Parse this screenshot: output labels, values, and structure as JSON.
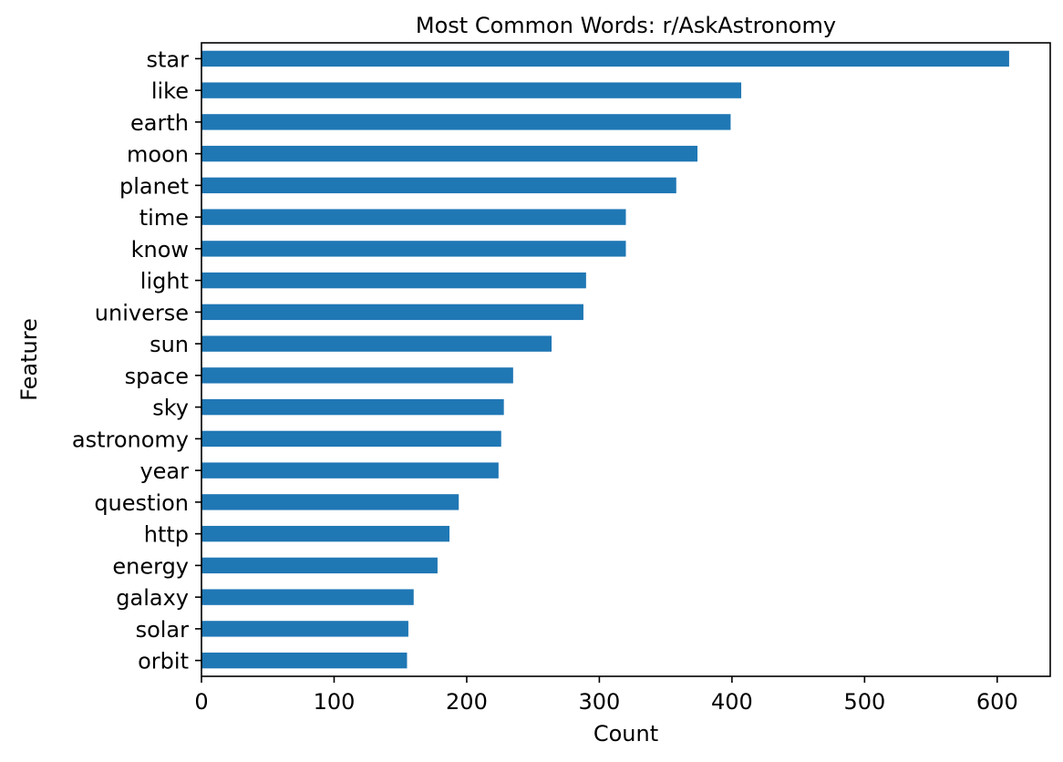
{
  "chart_data": {
    "type": "bar",
    "orientation": "horizontal",
    "title": "Most Common Words: r/AskAstronomy",
    "xlabel": "Count",
    "ylabel": "Feature",
    "categories": [
      "star",
      "like",
      "earth",
      "moon",
      "planet",
      "time",
      "know",
      "light",
      "universe",
      "sun",
      "space",
      "sky",
      "astronomy",
      "year",
      "question",
      "http",
      "energy",
      "galaxy",
      "solar",
      "orbit"
    ],
    "values": [
      609,
      407,
      399,
      374,
      358,
      320,
      320,
      290,
      288,
      264,
      235,
      228,
      226,
      224,
      194,
      187,
      178,
      160,
      156,
      155
    ],
    "xlim": [
      0,
      640
    ],
    "xticks": [
      0,
      100,
      200,
      300,
      400,
      500,
      600
    ],
    "grid": false,
    "bar_color": "#1f77b4"
  }
}
